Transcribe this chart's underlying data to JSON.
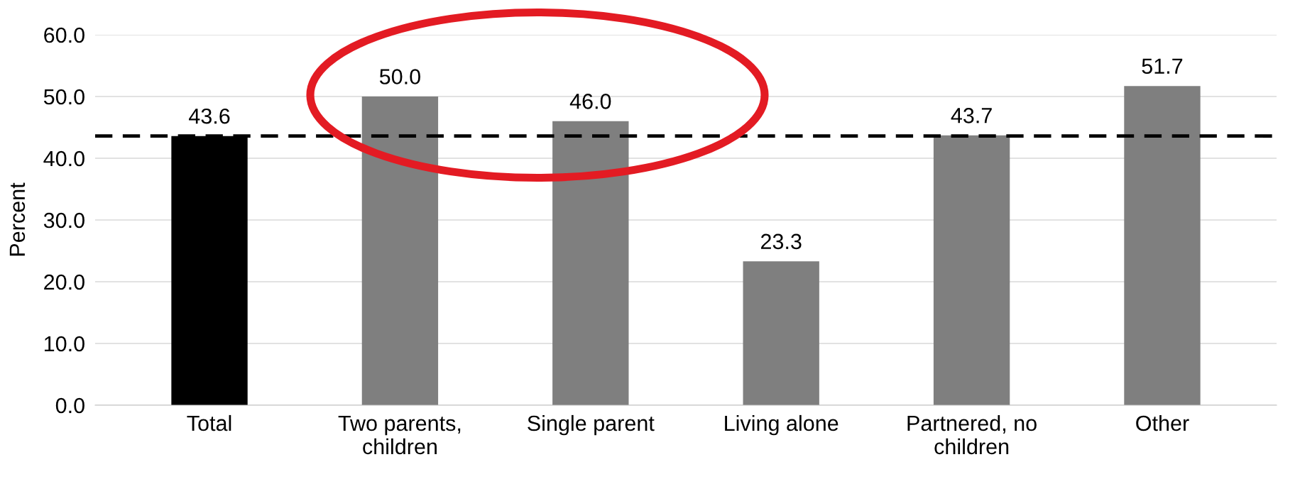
{
  "chart_data": {
    "type": "bar",
    "ylabel": "Percent",
    "categories": [
      "Total",
      "Two parents,\nchildren",
      "Single parent",
      "Living alone",
      "Partnered, no\nchildren",
      "Other"
    ],
    "values": [
      43.6,
      50.0,
      46.0,
      23.3,
      43.7,
      51.7
    ],
    "value_labels": [
      "43.6",
      "50.0",
      "46.0",
      "23.3",
      "43.7",
      "51.7"
    ],
    "colors": [
      "#000000",
      "#7f7f7f",
      "#7f7f7f",
      "#7f7f7f",
      "#7f7f7f",
      "#7f7f7f"
    ],
    "ylim": [
      0,
      60
    ],
    "yticks": [
      {
        "value": 0,
        "label": "0.0"
      },
      {
        "value": 10,
        "label": "10.0"
      },
      {
        "value": 20,
        "label": "20.0"
      },
      {
        "value": 30,
        "label": "30.0"
      },
      {
        "value": 40,
        "label": "40.0"
      },
      {
        "value": 50,
        "label": "50.0"
      },
      {
        "value": 60,
        "label": "60.0"
      }
    ],
    "ref_lines": [
      {
        "axis": "y",
        "value": 43.6,
        "color": "#000000",
        "line_style": "dashed"
      }
    ],
    "grid": "y",
    "legend": false
  }
}
